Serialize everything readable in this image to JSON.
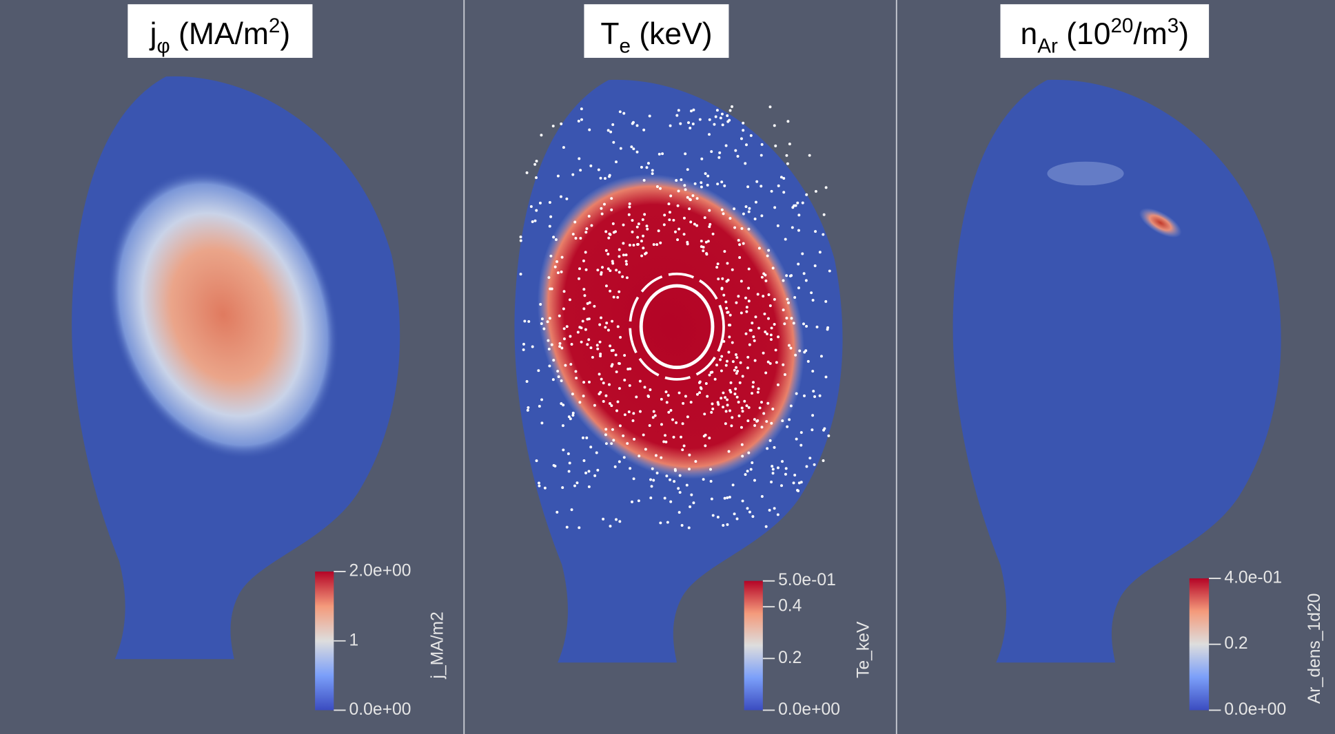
{
  "panels": [
    {
      "title": [
        {
          "text": "j"
        },
        {
          "text": "φ",
          "kind": "sub"
        },
        {
          "text": " (MA/m"
        },
        {
          "text": "2",
          "kind": "sup"
        },
        {
          "text": ")"
        }
      ],
      "colorbar": {
        "label": "j_MA/m2",
        "lim": [
          0,
          2
        ],
        "ticks": [
          {
            "value": 0,
            "label": "0.0e+00"
          },
          1,
          {
            "value": 2,
            "label": "2.0e+00"
          }
        ]
      }
    },
    {
      "title": [
        {
          "text": "T"
        },
        {
          "text": "e",
          "kind": "sub"
        },
        {
          "text": " (keV)"
        }
      ],
      "colorbar": {
        "label": "Te_keV",
        "lim": [
          0,
          0.5
        ],
        "ticks": [
          {
            "value": 0,
            "label": "0.0e+00"
          },
          0.2,
          0.4,
          {
            "value": 0.5,
            "label": "5.0e-01"
          }
        ]
      }
    },
    {
      "title": [
        {
          "text": "n"
        },
        {
          "text": "Ar",
          "kind": "sub"
        },
        {
          "text": " (10"
        },
        {
          "text": "20",
          "kind": "sup"
        },
        {
          "text": "/m"
        },
        {
          "text": "3",
          "kind": "sup"
        },
        {
          "text": ")"
        }
      ],
      "colorbar": {
        "label": "Ar_dens_1d20",
        "lim": [
          0,
          0.4
        ],
        "ticks": [
          {
            "value": 0,
            "label": "0.0e+00"
          },
          0.2,
          {
            "value": 0.4,
            "label": "4.0e-01"
          }
        ]
      }
    }
  ]
}
